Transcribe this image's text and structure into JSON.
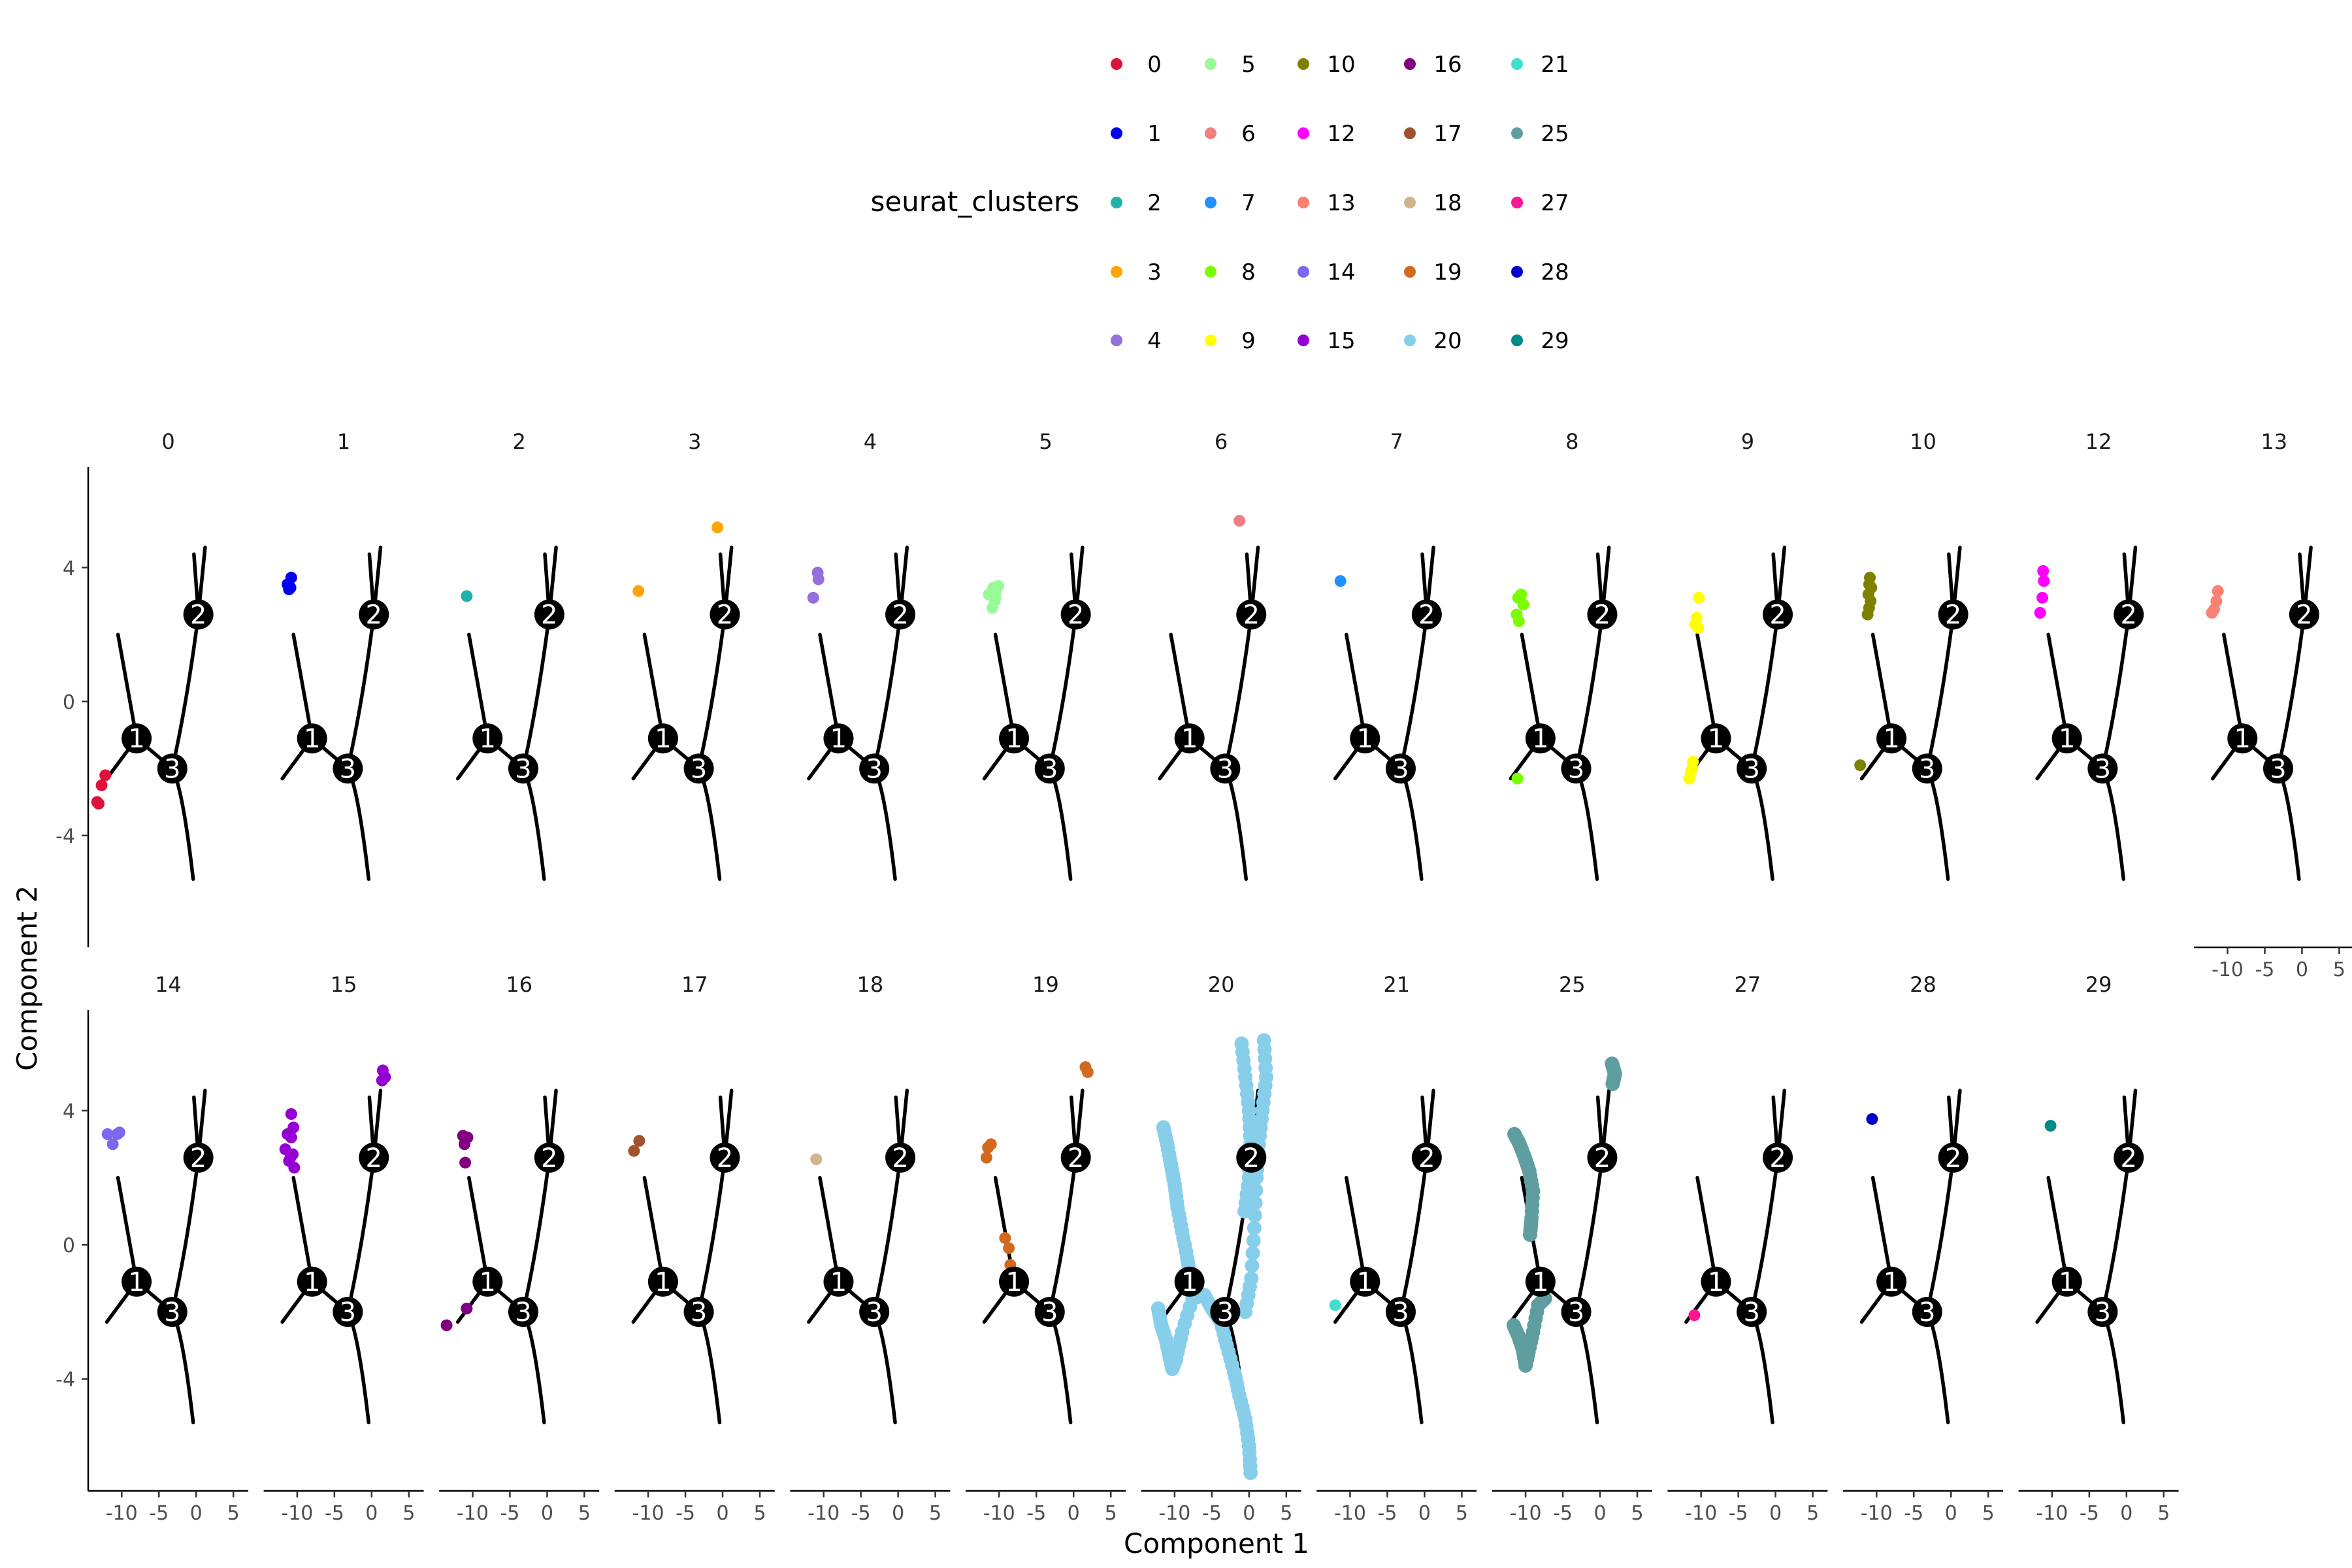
{
  "chart_data": {
    "type": "scatter",
    "xlabel": "Component 1",
    "ylabel": "Component 2",
    "xlim": [
      -14.5,
      7
    ],
    "ylim": [
      -7.3,
      7.0
    ],
    "x_ticks": [
      {
        "value": -10,
        "label": "-10"
      },
      {
        "value": -5,
        "label": "-5"
      },
      {
        "value": 0,
        "label": "0"
      },
      {
        "value": 5,
        "label": "5"
      }
    ],
    "y_ticks": [
      {
        "value": 4,
        "label": "4"
      },
      {
        "value": 0,
        "label": "0"
      },
      {
        "value": -4,
        "label": "-4"
      }
    ],
    "legend": {
      "title": "seurat_clusters",
      "position": "top",
      "entries": [
        {
          "label": "0",
          "color": "#dc143c"
        },
        {
          "label": "1",
          "color": "#0000ee"
        },
        {
          "label": "2",
          "color": "#20b2aa"
        },
        {
          "label": "3",
          "color": "#ffa500"
        },
        {
          "label": "4",
          "color": "#9370db"
        },
        {
          "label": "5",
          "color": "#98fb98"
        },
        {
          "label": "6",
          "color": "#f08080"
        },
        {
          "label": "7",
          "color": "#1e90ff"
        },
        {
          "label": "8",
          "color": "#7cfc00"
        },
        {
          "label": "9",
          "color": "#ffff00"
        },
        {
          "label": "10",
          "color": "#808000"
        },
        {
          "label": "12",
          "color": "#ff00ff"
        },
        {
          "label": "13",
          "color": "#fa8072"
        },
        {
          "label": "14",
          "color": "#7b68ee"
        },
        {
          "label": "15",
          "color": "#9400d3"
        },
        {
          "label": "16",
          "color": "#800080"
        },
        {
          "label": "17",
          "color": "#a0522d"
        },
        {
          "label": "18",
          "color": "#d2b48c"
        },
        {
          "label": "19",
          "color": "#d2691e"
        },
        {
          "label": "20",
          "color": "#87ceeb"
        },
        {
          "label": "21",
          "color": "#40e0d0"
        },
        {
          "label": "25",
          "color": "#5f9ea0"
        },
        {
          "label": "27",
          "color": "#ff1493"
        },
        {
          "label": "28",
          "color": "#0000cd"
        },
        {
          "label": "29",
          "color": "#008b8b"
        }
      ]
    },
    "trajectory": {
      "color": "#000000",
      "segments": [
        [
          [
            -10.5,
            2.0
          ],
          [
            -8.0,
            -1.1
          ]
        ],
        [
          [
            -12.0,
            -2.3
          ],
          [
            -8.0,
            -1.1
          ]
        ],
        [
          [
            -8.0,
            -1.1
          ],
          [
            -3.2,
            -2.0
          ]
        ],
        [
          [
            -3.2,
            -2.0
          ],
          [
            -1.8,
            -2.6
          ],
          [
            -0.4,
            -5.3
          ]
        ],
        [
          [
            -3.2,
            -2.0
          ],
          [
            -1.2,
            0.0
          ],
          [
            0.3,
            2.6
          ]
        ],
        [
          [
            0.3,
            2.6
          ],
          [
            -0.3,
            4.4
          ]
        ],
        [
          [
            0.3,
            2.6
          ],
          [
            1.2,
            4.6
          ]
        ]
      ],
      "nodes": [
        {
          "label": "1",
          "x": -8.0,
          "y": -1.1
        },
        {
          "label": "3",
          "x": -3.2,
          "y": -2.0
        },
        {
          "label": "2",
          "x": 0.3,
          "y": 2.6
        }
      ]
    },
    "panels": [
      {
        "label": "0",
        "points": [
          [
            -12.2,
            -2.2
          ],
          [
            -12.7,
            -2.5
          ],
          [
            -13.1,
            -3.05
          ],
          [
            -13.3,
            -3.0
          ]
        ]
      },
      {
        "label": "1",
        "points": [
          [
            -10.8,
            3.7
          ],
          [
            -11.3,
            3.5
          ],
          [
            -11.1,
            3.35
          ],
          [
            -10.9,
            3.4
          ]
        ]
      },
      {
        "label": "2",
        "points": [
          [
            -10.8,
            3.15
          ]
        ]
      },
      {
        "label": "3",
        "points": [
          [
            -11.3,
            3.3
          ],
          [
            -0.7,
            5.2
          ]
        ]
      },
      {
        "label": "4",
        "points": [
          [
            -10.8,
            3.85
          ],
          [
            -10.7,
            3.65
          ],
          [
            -11.4,
            3.1
          ]
        ]
      },
      {
        "label": "5",
        "points": [
          [
            -11.4,
            3.2
          ],
          [
            -10.8,
            3.4
          ],
          [
            -10.4,
            3.3
          ],
          [
            -10.1,
            3.45
          ],
          [
            -10.6,
            3.0
          ],
          [
            -10.9,
            2.8
          ],
          [
            -10.5,
            3.1
          ]
        ]
      },
      {
        "label": "6",
        "points": [
          [
            -1.3,
            5.4
          ]
        ]
      },
      {
        "label": "7",
        "points": [
          [
            -11.3,
            3.6
          ]
        ]
      },
      {
        "label": "8",
        "points": [
          [
            -11.0,
            3.1
          ],
          [
            -10.6,
            3.2
          ],
          [
            -10.3,
            2.9
          ],
          [
            -11.2,
            2.6
          ],
          [
            -10.9,
            2.4
          ],
          [
            -11.1,
            -2.3
          ]
        ]
      },
      {
        "label": "9",
        "points": [
          [
            -10.3,
            3.1
          ],
          [
            -10.6,
            2.5
          ],
          [
            -10.8,
            2.3
          ],
          [
            -10.4,
            2.2
          ],
          [
            -11.1,
            -1.8
          ],
          [
            -11.4,
            -2.1
          ],
          [
            -11.6,
            -2.3
          ],
          [
            -11.2,
            -2.0
          ]
        ]
      },
      {
        "label": "10",
        "points": [
          [
            -10.9,
            3.7
          ],
          [
            -11.0,
            3.5
          ],
          [
            -10.7,
            3.4
          ],
          [
            -11.1,
            3.2
          ],
          [
            -10.8,
            3.0
          ],
          [
            -11.0,
            2.8
          ],
          [
            -11.2,
            2.6
          ],
          [
            -12.2,
            -1.9
          ]
        ]
      },
      {
        "label": "12",
        "points": [
          [
            -11.2,
            3.9
          ],
          [
            -11.1,
            3.6
          ],
          [
            -11.3,
            3.1
          ],
          [
            -11.6,
            2.65
          ]
        ]
      },
      {
        "label": "13",
        "points": [
          [
            -11.3,
            3.3
          ],
          [
            -11.5,
            3.0
          ],
          [
            -11.8,
            2.75
          ],
          [
            -12.1,
            2.65
          ]
        ]
      },
      {
        "label": "14",
        "points": [
          [
            -10.3,
            3.35
          ],
          [
            -10.6,
            3.3
          ],
          [
            -11.9,
            3.3
          ],
          [
            -11.2,
            3.0
          ]
        ]
      },
      {
        "label": "15",
        "points": [
          [
            -10.8,
            3.9
          ],
          [
            -10.5,
            3.5
          ],
          [
            -11.3,
            3.3
          ],
          [
            -10.8,
            3.2
          ],
          [
            -11.6,
            2.85
          ],
          [
            -10.6,
            2.7
          ],
          [
            -11.1,
            2.5
          ],
          [
            -10.4,
            2.3
          ],
          [
            -10.9,
            2.6
          ],
          [
            1.5,
            5.2
          ],
          [
            1.8,
            5.0
          ],
          [
            1.4,
            4.9
          ]
        ]
      },
      {
        "label": "16",
        "points": [
          [
            -11.3,
            3.25
          ],
          [
            -10.7,
            3.2
          ],
          [
            -11.1,
            3.0
          ],
          [
            -11.0,
            2.45
          ],
          [
            -10.8,
            -1.9
          ],
          [
            -13.5,
            -2.4
          ]
        ]
      },
      {
        "label": "17",
        "points": [
          [
            -11.2,
            3.1
          ],
          [
            -11.9,
            2.8
          ]
        ]
      },
      {
        "label": "18",
        "points": [
          [
            -11.0,
            2.55
          ]
        ]
      },
      {
        "label": "19",
        "points": [
          [
            -11.5,
            2.9
          ],
          [
            -11.1,
            3.0
          ],
          [
            -11.7,
            2.6
          ],
          [
            -9.2,
            0.2
          ],
          [
            -8.7,
            -0.1
          ],
          [
            -8.5,
            -0.6
          ],
          [
            -7.6,
            -1.3
          ],
          [
            1.6,
            5.3
          ],
          [
            1.9,
            5.15
          ]
        ]
      },
      {
        "label": "20",
        "points": [
          [
            -11.5,
            3.5
          ],
          [
            -11.0,
            3.0
          ],
          [
            -10.5,
            2.4
          ],
          [
            -10.0,
            1.8
          ],
          [
            -9.6,
            1.1
          ],
          [
            -9.0,
            0.4
          ],
          [
            -8.3,
            -0.4
          ],
          [
            -7.9,
            -1.0
          ],
          [
            -12.2,
            -1.9
          ],
          [
            -11.8,
            -2.4
          ],
          [
            -11.2,
            -2.8
          ],
          [
            -10.7,
            -3.3
          ],
          [
            -10.3,
            -3.7
          ],
          [
            -9.8,
            -3.4
          ],
          [
            -9.0,
            -2.6
          ],
          [
            -7.6,
            -1.6
          ],
          [
            -6.0,
            -1.5
          ],
          [
            -5.0,
            -1.9
          ],
          [
            -3.8,
            -2.3
          ],
          [
            -3.0,
            -3.0
          ],
          [
            -2.0,
            -3.8
          ],
          [
            -1.3,
            -4.5
          ],
          [
            -0.5,
            -5.2
          ],
          [
            0.0,
            -6.0
          ],
          [
            0.2,
            -6.8
          ],
          [
            -0.6,
            1.0
          ],
          [
            0.0,
            2.0
          ],
          [
            0.2,
            3.0
          ],
          [
            0.0,
            4.0
          ],
          [
            -0.5,
            5.0
          ],
          [
            -1.0,
            6.0
          ],
          [
            2.0,
            6.1
          ],
          [
            2.3,
            5.0
          ],
          [
            1.8,
            4.0
          ],
          [
            1.3,
            3.0
          ],
          [
            1.0,
            2.0
          ],
          [
            0.7,
            0.5
          ],
          [
            0.3,
            -1.0
          ],
          [
            -0.5,
            -2.0
          ]
        ]
      },
      {
        "label": "21",
        "points": [
          [
            -12.0,
            -1.8
          ]
        ]
      },
      {
        "label": "25",
        "points": [
          [
            -11.5,
            3.3
          ],
          [
            -10.8,
            3.0
          ],
          [
            -10.1,
            2.6
          ],
          [
            -9.5,
            2.2
          ],
          [
            -9.0,
            1.6
          ],
          [
            -9.2,
            0.8
          ],
          [
            -9.4,
            0.3
          ],
          [
            -11.6,
            -2.4
          ],
          [
            -11.0,
            -2.7
          ],
          [
            -10.4,
            -3.1
          ],
          [
            -10.0,
            -3.6
          ],
          [
            -9.6,
            -3.2
          ],
          [
            -9.0,
            -2.6
          ],
          [
            -8.3,
            -1.8
          ],
          [
            -7.4,
            -1.6
          ],
          [
            1.6,
            5.4
          ],
          [
            2.0,
            5.1
          ],
          [
            1.7,
            4.8
          ]
        ]
      },
      {
        "label": "27",
        "points": [
          [
            -10.9,
            -2.1
          ]
        ]
      },
      {
        "label": "28",
        "points": [
          [
            -10.6,
            3.75
          ]
        ]
      },
      {
        "label": "29",
        "points": [
          [
            -10.2,
            3.55
          ]
        ]
      }
    ]
  }
}
